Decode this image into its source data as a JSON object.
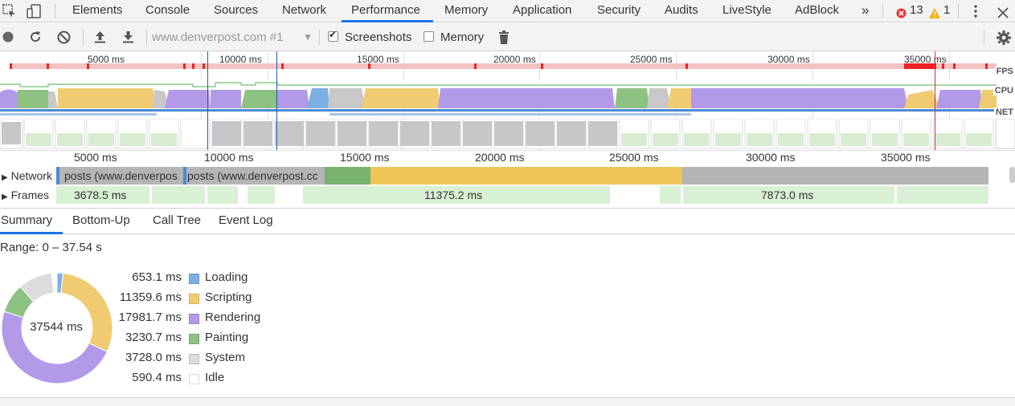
{
  "tabs": {
    "elements": "Elements",
    "console": "Console",
    "sources": "Sources",
    "network": "Network",
    "performance": "Performance",
    "memory": "Memory",
    "application": "Application",
    "security": "Security",
    "audits": "Audits",
    "livestyle": "LiveStyle",
    "adblock": "AdBlock",
    "more": "»"
  },
  "status": {
    "errors": "13",
    "warnings": "1"
  },
  "toolbar": {
    "recording_select": "www.denverpost.com #1",
    "screenshots_label": "Screenshots",
    "screenshots_checked": true,
    "memory_label": "Memory",
    "memory_checked": false
  },
  "overview": {
    "ticks": [
      "5000 ms",
      "10000 ms",
      "15000 ms",
      "20000 ms",
      "25000 ms",
      "30000 ms",
      "35000 ms"
    ],
    "fps_label": "FPS",
    "cpu_label": "CPU",
    "net_label": "NET"
  },
  "ruler": {
    "ticks": [
      "5000 ms",
      "10000 ms",
      "15000 ms",
      "20000 ms",
      "25000 ms",
      "30000 ms",
      "35000 ms"
    ]
  },
  "tracks": {
    "network_label": "Network",
    "network_items": [
      "posts (www.denverpos",
      "posts (www.denverpost.cc"
    ],
    "frames_label": "Frames",
    "frames_items": [
      "3678.5 ms",
      "11375.2 ms",
      "7873.0 ms"
    ]
  },
  "subtabs": [
    "Summary",
    "Bottom-Up",
    "Call Tree",
    "Event Log"
  ],
  "summary": {
    "range": "Range: 0 – 37.54 s",
    "total": "37544 ms",
    "categories": [
      {
        "value": "653.1 ms",
        "name": "Loading",
        "ms": 653.1,
        "color": "#7cb0e5"
      },
      {
        "value": "11359.6 ms",
        "name": "Scripting",
        "ms": 11359.6,
        "color": "#f0cb72"
      },
      {
        "value": "17981.7 ms",
        "name": "Rendering",
        "ms": 17981.7,
        "color": "#b29ae9"
      },
      {
        "value": "3230.7 ms",
        "name": "Painting",
        "ms": 3230.7,
        "color": "#8dc283"
      },
      {
        "value": "3728.0 ms",
        "name": "System",
        "ms": 3728.0,
        "color": "#dcdcdc"
      },
      {
        "value": "590.4 ms",
        "name": "Idle",
        "ms": 590.4,
        "color": "#ffffff"
      }
    ]
  },
  "colors": {
    "accent": "#1a73e8",
    "fps_red": "#e22",
    "fps_pink": "#f4c2c2",
    "network_grey": "#b5b5b5",
    "frames_green": "#d8f0d3"
  }
}
